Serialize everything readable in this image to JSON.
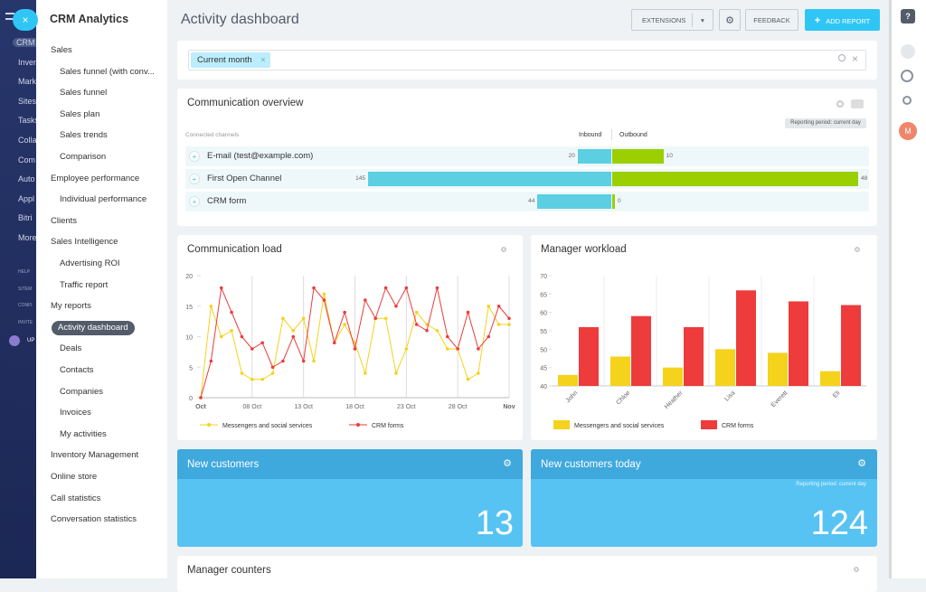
{
  "sidebar": {
    "items": [
      "CRM",
      "Inven",
      "Mark",
      "Sites",
      "Tasks",
      "Colla",
      "Com",
      "Auto",
      "Appl",
      "Bitri",
      "More"
    ],
    "small_items": [
      "HELP",
      "SITEM",
      "CONFI",
      "INVITE"
    ],
    "upgrade": "UP"
  },
  "menu": {
    "title": "CRM Analytics",
    "items": [
      {
        "label": "Sales",
        "level": 0
      },
      {
        "label": "Sales funnel (with conv...",
        "level": 1
      },
      {
        "label": "Sales funnel",
        "level": 1
      },
      {
        "label": "Sales plan",
        "level": 1
      },
      {
        "label": "Sales trends",
        "level": 1
      },
      {
        "label": "Comparison",
        "level": 1
      },
      {
        "label": "Employee performance",
        "level": 0
      },
      {
        "label": "Individual performance",
        "level": 1
      },
      {
        "label": "Clients",
        "level": 0
      },
      {
        "label": "Sales Intelligence",
        "level": 0
      },
      {
        "label": "Advertising ROI",
        "level": 1
      },
      {
        "label": "Traffic report",
        "level": 1
      },
      {
        "label": "My reports",
        "level": 0
      },
      {
        "label": "Activity dashboard",
        "level": 1,
        "active": true
      },
      {
        "label": "Deals",
        "level": 1
      },
      {
        "label": "Contacts",
        "level": 1
      },
      {
        "label": "Companies",
        "level": 1
      },
      {
        "label": "Invoices",
        "level": 1
      },
      {
        "label": "My activities",
        "level": 1
      },
      {
        "label": "Inventory Management",
        "level": 0
      },
      {
        "label": "Online store",
        "level": 0
      },
      {
        "label": "Call statistics",
        "level": 0
      },
      {
        "label": "Conversation statistics",
        "level": 0
      }
    ]
  },
  "header": {
    "title": "Activity dashboard",
    "buttons": {
      "extensions": "EXTENSIONS",
      "feedback": "FEEDBACK",
      "add_report": "ADD REPORT"
    }
  },
  "filter": {
    "chip": "Current month"
  },
  "overview": {
    "type": "bar",
    "title": "Communication overview",
    "period": "Reporting period: current day",
    "channels_label": "Connected channels",
    "inbound_label": "Inbound",
    "outbound_label": "Outbound",
    "inbound_color": "#5ccfe2",
    "outbound_color": "#9bcf00",
    "rows": [
      {
        "name": "E-mail (test@example.com)",
        "inbound": 20,
        "outbound": 10
      },
      {
        "name": "First Open Channel",
        "inbound": 145,
        "outbound": 48
      },
      {
        "name": "CRM form",
        "inbound": 44,
        "outbound": 0
      }
    ]
  },
  "load_chart": {
    "type": "line",
    "title": "Communication load",
    "categories": [
      "Oct",
      null,
      null,
      null,
      null,
      "08 Oct",
      null,
      null,
      null,
      null,
      "13 Oct",
      null,
      null,
      null,
      null,
      "18 Oct",
      null,
      null,
      null,
      null,
      "23 Oct",
      null,
      null,
      null,
      null,
      "28 Oct",
      null,
      null,
      null,
      null,
      "Nov"
    ],
    "series": [
      {
        "name": "Messengers and social services",
        "color": "#f5d21c",
        "values": [
          0,
          15,
          10,
          11,
          4,
          3,
          3,
          4,
          13,
          11,
          13,
          6,
          17,
          9,
          12,
          9,
          4,
          13,
          13,
          4,
          8,
          14,
          12,
          11,
          8,
          8,
          3,
          4,
          15,
          12,
          12
        ]
      },
      {
        "name": "CRM forms",
        "color": "#ee3b3b",
        "values": [
          0,
          6,
          18,
          14,
          10,
          8,
          9,
          5,
          6,
          10,
          6,
          18,
          16,
          9,
          14,
          8,
          16,
          13,
          18,
          15,
          18,
          12,
          11,
          18,
          10,
          8,
          14,
          8,
          10,
          15,
          13
        ]
      }
    ],
    "ylim": [
      0,
      20
    ],
    "yticks": [
      0,
      5,
      10,
      15,
      20
    ],
    "grid": "x"
  },
  "workload_chart": {
    "type": "bar",
    "title": "Manager workload",
    "categories": [
      "John",
      "Chloe",
      "Heather",
      "Lisa",
      "Everett",
      "Eli"
    ],
    "series": [
      {
        "name": "Messengers and social services",
        "color": "#f5d21c",
        "values": [
          43,
          48,
          45,
          50,
          49,
          44
        ]
      },
      {
        "name": "CRM forms",
        "color": "#ee3b3b",
        "values": [
          56,
          59,
          56,
          66,
          63,
          62
        ]
      }
    ],
    "ylim": [
      40,
      70
    ],
    "yticks": [
      40,
      45,
      50,
      55,
      60,
      65,
      70
    ]
  },
  "tiles": [
    {
      "title": "New customers",
      "value": 13
    },
    {
      "title": "New customers today",
      "period": "Reporting period: current day",
      "value": 124
    }
  ],
  "counters": {
    "title": "Manager counters"
  },
  "right_bar": {
    "avatar": "M"
  }
}
